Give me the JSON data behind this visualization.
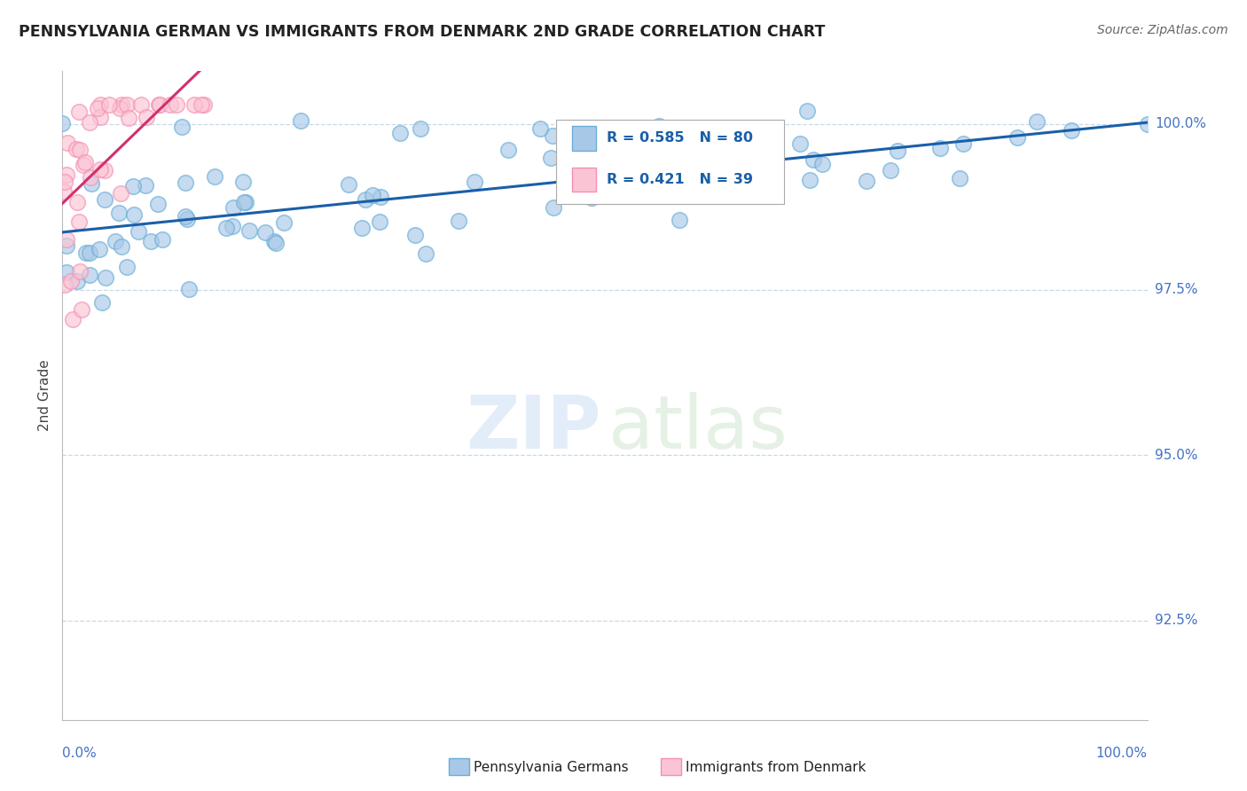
{
  "title": "PENNSYLVANIA GERMAN VS IMMIGRANTS FROM DENMARK 2ND GRADE CORRELATION CHART",
  "source": "Source: ZipAtlas.com",
  "ylabel": "2nd Grade",
  "ytick_labels": [
    "92.5%",
    "95.0%",
    "97.5%",
    "100.0%"
  ],
  "ytick_values": [
    0.925,
    0.95,
    0.975,
    1.0
  ],
  "xrange": [
    0.0,
    1.0
  ],
  "yrange": [
    0.91,
    1.008
  ],
  "blue_R": 0.585,
  "blue_N": 80,
  "pink_R": 0.421,
  "pink_N": 39,
  "blue_face_color": "#a8c8e8",
  "blue_edge_color": "#6baed6",
  "pink_face_color": "#fbc4d4",
  "pink_edge_color": "#f490b0",
  "blue_trend_color": "#1a5fa8",
  "pink_trend_color": "#d03070",
  "legend_label_blue": "Pennsylvania Germans",
  "legend_label_pink": "Immigrants from Denmark",
  "background_color": "#ffffff",
  "grid_color": "#c8d8e8",
  "spine_color": "#bbbbbb"
}
